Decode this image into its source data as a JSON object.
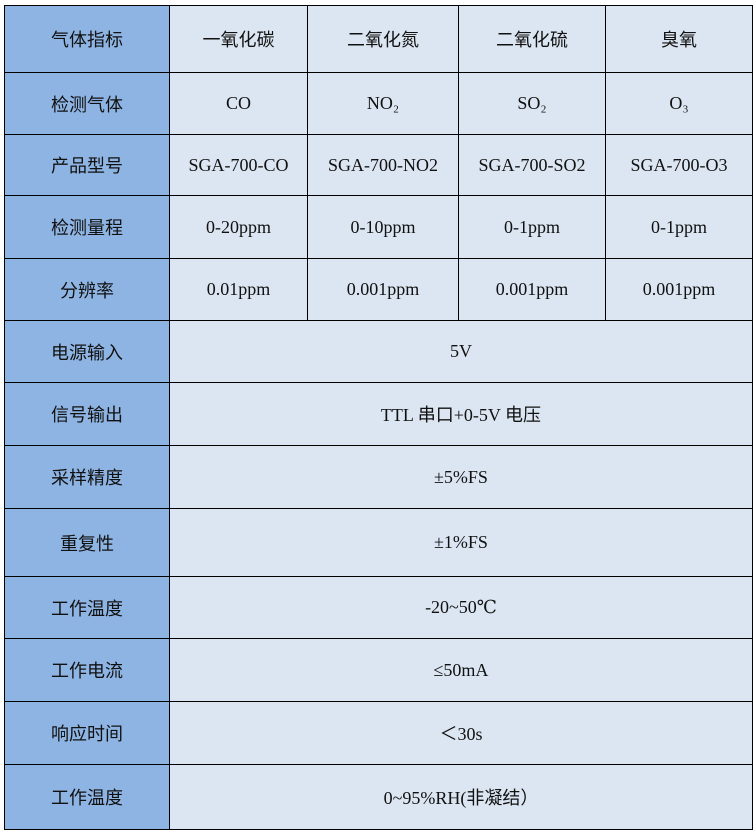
{
  "header": {
    "label": "气体指标",
    "columns": [
      "一氧化碳",
      "二氧化氮",
      "二氧化硫",
      "臭氧"
    ]
  },
  "per_gas_rows": [
    {
      "label": "检测气体",
      "values": [
        "CO",
        "NO₂",
        "SO₂",
        "O₃"
      ]
    },
    {
      "label": "产品型号",
      "values": [
        "SGA-700-CO",
        "SGA-700-NO2",
        "SGA-700-SO2",
        "SGA-700-O3"
      ]
    },
    {
      "label": "检测量程",
      "values": [
        "0-20ppm",
        "0-10ppm",
        "0-1ppm",
        "0-1ppm"
      ]
    },
    {
      "label": "分辨率",
      "values": [
        "0.01ppm",
        "0.001ppm",
        "0.001ppm",
        "0.001ppm"
      ]
    }
  ],
  "common_rows": [
    {
      "label": "电源输入",
      "value": "5V"
    },
    {
      "label": "信号输出",
      "value": "TTL 串口+0-5V 电压"
    },
    {
      "label": "采样精度",
      "value": "±5%FS"
    },
    {
      "label": "重复性",
      "value": "±1%FS"
    },
    {
      "label": "工作温度",
      "value": "-20~50℃"
    },
    {
      "label": "工作电流",
      "value": "≤50mA"
    },
    {
      "label": "响应时间",
      "value": "＜30s"
    },
    {
      "label": "工作温度",
      "value": "0~95%RH(非凝结）"
    }
  ],
  "colors": {
    "label_bg": "#8eb4e3",
    "cell_bg": "#dce6f2",
    "border": "#000000"
  }
}
